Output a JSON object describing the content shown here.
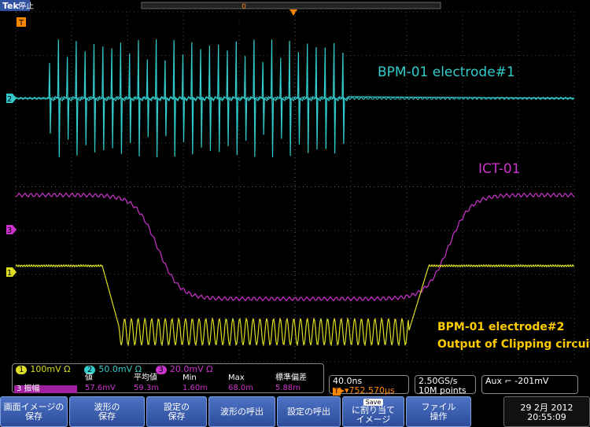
{
  "screen": {
    "brand": "Tek",
    "status": "停止",
    "trigger_marker": "T",
    "time_origin": "0",
    "channel_markers": [
      {
        "label": "2",
        "color": "#33cccc"
      },
      {
        "label": "3",
        "color": "#cc33cc"
      },
      {
        "label": "1",
        "color": "#dddd22"
      }
    ],
    "annotations": {
      "ch2": "BPM-01 electrode#1",
      "ch3": "ICT-01",
      "ch1": [
        "BPM-01 electrode#2",
        "Output of Clipping circuit"
      ]
    }
  },
  "channel_bar": [
    {
      "number": "1",
      "scale": "100mV Ω"
    },
    {
      "number": "2",
      "scale": "50.0mV Ω"
    },
    {
      "number": "3",
      "scale": "20.0mV Ω"
    }
  ],
  "measurement": {
    "source": "3",
    "label": "振幅",
    "headers": [
      "値",
      "平均値",
      "Min",
      "Max",
      "標準偏差"
    ],
    "values": [
      "57.6mV",
      "59.3m",
      "1.60m",
      "68.0m",
      "5.88m"
    ]
  },
  "timebase": {
    "scale": "40.0ns",
    "position": "752.570µs"
  },
  "acquisition": {
    "rate": "2.50GS/s",
    "record": "10M points"
  },
  "trigger": {
    "source": "Aux",
    "level": "-201mV"
  },
  "buttons": [
    [
      "画面イメージの",
      "保存"
    ],
    [
      "波形の",
      "保存"
    ],
    [
      "設定の",
      "保存"
    ],
    [
      "波形の呼出"
    ],
    [
      "設定の呼出"
    ],
    [
      "Save",
      "に割り当て",
      "イメージ"
    ],
    [
      "ファイル",
      "操作"
    ]
  ],
  "datetime": {
    "date": "29 2月 2012",
    "time": "20:55:09"
  }
}
